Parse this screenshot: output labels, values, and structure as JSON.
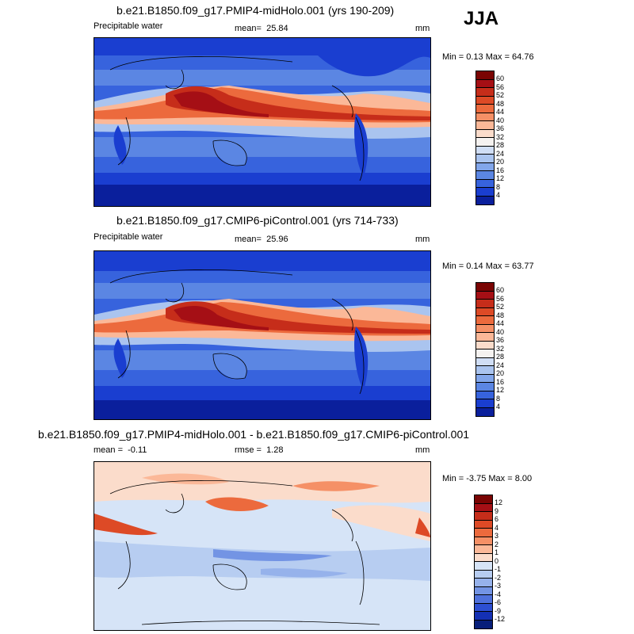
{
  "season": "JJA",
  "panels": [
    {
      "title": "b.e21.B1850.f09_g17.PMIP4-midHolo.001 (yrs 190-209)",
      "variable": "Precipitable water",
      "mean_label": "mean=",
      "mean_value": "25.84",
      "units": "mm",
      "minmax": "Min =  0.13 Max =  64.76",
      "levels": [
        "60",
        "56",
        "52",
        "48",
        "44",
        "40",
        "36",
        "32",
        "28",
        "24",
        "20",
        "16",
        "12",
        "8",
        "4"
      ]
    },
    {
      "title": "b.e21.B1850.f09_g17.CMIP6-piControl.001 (yrs 714-733)",
      "variable": "Precipitable water",
      "mean_label": "mean=",
      "mean_value": "25.96",
      "units": "mm",
      "minmax": "Min =  0.14 Max =  63.77",
      "levels": [
        "60",
        "56",
        "52",
        "48",
        "44",
        "40",
        "36",
        "32",
        "28",
        "24",
        "20",
        "16",
        "12",
        "8",
        "4"
      ]
    },
    {
      "title": "b.e21.B1850.f09_g17.PMIP4-midHolo.001 - b.e21.B1850.f09_g17.CMIP6-piControl.001",
      "mean_label": "mean =",
      "mean_value": "-0.11",
      "rmse_label": "rmse =",
      "rmse_value": "1.28",
      "units": "mm",
      "minmax": "Min = -3.75 Max =  8.00",
      "levels": [
        "12",
        "9",
        "6",
        "4",
        "3",
        "2",
        "1",
        "0",
        "-1",
        "-2",
        "-3",
        "-4",
        "-6",
        "-9",
        "-12"
      ]
    }
  ],
  "colors": {
    "abs_scale": [
      "#7a0403",
      "#a50f15",
      "#c62d1a",
      "#dd4a26",
      "#ec6a3d",
      "#f59066",
      "#fbb898",
      "#fbdccb",
      "#f5f2f0",
      "#d0def5",
      "#aac4ef",
      "#82a6ea",
      "#5b86e3",
      "#3763dd",
      "#1a3ed0",
      "#0a1f9c"
    ],
    "diff_scale": [
      "#7a0403",
      "#a50f15",
      "#c62d1a",
      "#dd4a26",
      "#ec6a3d",
      "#f59066",
      "#fbb898",
      "#fbdccb",
      "#d6e4f7",
      "#b7cdf1",
      "#96b2eb",
      "#7394e4",
      "#4f71dc",
      "#2d4fd2",
      "#1430b4",
      "#081f7a"
    ]
  }
}
